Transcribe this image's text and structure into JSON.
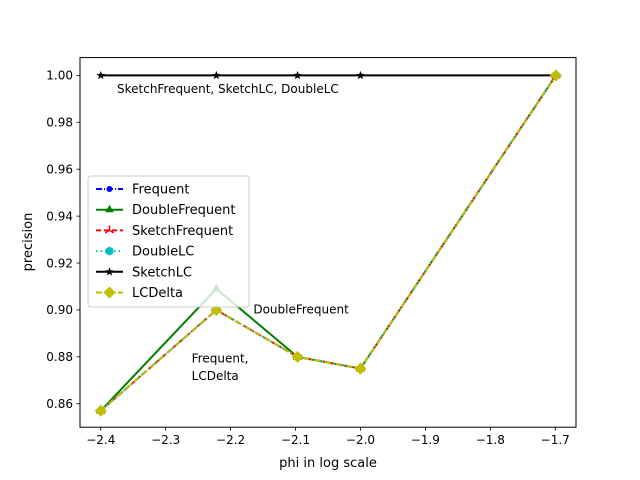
{
  "chart_data": {
    "type": "line",
    "title": "",
    "xlabel": "phi in log scale",
    "ylabel": "precision",
    "xlim": [
      -2.432,
      -1.668
    ],
    "ylim": [
      0.85,
      1.0076
    ],
    "xticks": [
      -2.4,
      -2.3,
      -2.2,
      -2.1,
      -2.0,
      -1.9,
      -1.8,
      -1.7
    ],
    "xtick_labels": [
      "−2.4",
      "−2.3",
      "−2.2",
      "−2.1",
      "−2.0",
      "−1.9",
      "−1.8",
      "−1.7"
    ],
    "yticks": [
      0.86,
      0.88,
      0.9,
      0.92,
      0.94,
      0.96,
      0.98,
      1.0
    ],
    "ytick_labels": [
      "0.86",
      "0.88",
      "0.90",
      "0.92",
      "0.94",
      "0.96",
      "0.98",
      "1.00"
    ],
    "grid": false,
    "legend_position": "center-left",
    "x": [
      -2.4,
      -2.222,
      -2.097,
      -2.0,
      -1.699
    ],
    "series": [
      {
        "name": "Frequent",
        "values": [
          0.857,
          0.9,
          0.88,
          0.875,
          1.0
        ],
        "color": "#0000ff",
        "dash": "6,2,1,2",
        "marker": "circle"
      },
      {
        "name": "DoubleFrequent",
        "values": [
          0.857,
          0.909,
          0.88,
          0.875,
          1.0
        ],
        "color": "#008000",
        "dash": "",
        "marker": "triangle"
      },
      {
        "name": "SketchFrequent",
        "values": [
          0.857,
          0.9,
          0.88,
          0.875,
          1.0
        ],
        "color": "#ff0000",
        "dash": "5,3",
        "marker": "tri"
      },
      {
        "name": "DoubleLC",
        "values": [
          0.857,
          0.9,
          0.88,
          0.875,
          1.0
        ],
        "color": "#00bfbf",
        "dash": "1.5,3",
        "marker": "hexagon"
      },
      {
        "name": "SketchLC",
        "values": [
          1.0,
          1.0,
          1.0,
          1.0,
          1.0
        ],
        "color": "#000000",
        "dash": "",
        "marker": "star"
      },
      {
        "name": "LCDelta",
        "values": [
          0.857,
          0.9,
          0.88,
          0.875,
          1.0
        ],
        "color": "#bfbf00",
        "dash": "6,2,1,2",
        "marker": "diamond"
      }
    ],
    "annotations": [
      {
        "text": "SketchFrequent, SketchLC, DoubleLC",
        "x": -2.375,
        "y": 0.9926
      },
      {
        "text": "DoubleFrequent",
        "x": -2.165,
        "y": 0.8985
      },
      {
        "text": "Frequent,",
        "x": -2.26,
        "y": 0.8776
      },
      {
        "text": "LCDelta",
        "x": -2.26,
        "y": 0.8701
      }
    ]
  }
}
